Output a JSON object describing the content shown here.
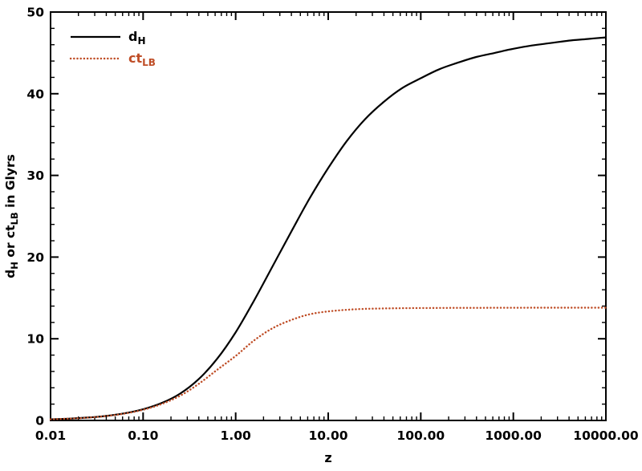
{
  "chart_data": {
    "type": "line",
    "title": "",
    "xlabel": "z",
    "ylabel": "dH or ctLB in Glyrs",
    "ylabel_parts": [
      {
        "t": "d"
      },
      {
        "t": "H",
        "sub": true
      },
      {
        "t": " or ct"
      },
      {
        "t": "LB",
        "sub": true
      },
      {
        "t": " in Glyrs"
      }
    ],
    "x_scale": "log",
    "xlim": [
      0.01,
      10000
    ],
    "ylim": [
      0,
      50
    ],
    "x_ticks": [
      {
        "v": 0.01,
        "label": "0.01"
      },
      {
        "v": 0.1,
        "label": "0.10"
      },
      {
        "v": 1,
        "label": "1.00"
      },
      {
        "v": 10,
        "label": "10.00"
      },
      {
        "v": 100,
        "label": "100.00"
      },
      {
        "v": 1000,
        "label": "1000.00"
      },
      {
        "v": 10000,
        "label": "10000.00"
      }
    ],
    "y_ticks": [
      {
        "v": 0,
        "label": "0"
      },
      {
        "v": 10,
        "label": "10"
      },
      {
        "v": 20,
        "label": "20"
      },
      {
        "v": 30,
        "label": "30"
      },
      {
        "v": 40,
        "label": "40"
      },
      {
        "v": 50,
        "label": "50"
      }
    ],
    "y_minor_step": 2,
    "grid": false,
    "legend_position": "top-left",
    "frame_color": "#000000",
    "series": [
      {
        "name": "d_H",
        "label_parts": [
          {
            "t": "d"
          },
          {
            "t": "H",
            "sub": true
          }
        ],
        "color": "#000000",
        "style": "solid",
        "x": [
          0.01,
          0.0158,
          0.0251,
          0.0398,
          0.0631,
          0.1,
          0.1585,
          0.2512,
          0.3981,
          0.631,
          1,
          1.585,
          2.512,
          3.981,
          6.31,
          10,
          15.85,
          25.12,
          39.81,
          63.1,
          100,
          158.5,
          251.2,
          398.1,
          631,
          1000,
          1585,
          2512,
          3981,
          6310,
          10000
        ],
        "y": [
          0.14,
          0.22,
          0.35,
          0.55,
          0.87,
          1.37,
          2.13,
          3.29,
          5.05,
          7.55,
          10.8,
          14.7,
          18.9,
          23.1,
          27.2,
          30.9,
          34.2,
          36.9,
          39.0,
          40.7,
          41.9,
          43.0,
          43.8,
          44.5,
          45.0,
          45.5,
          45.9,
          46.2,
          46.5,
          46.7,
          46.9
        ]
      },
      {
        "name": "ct_LB",
        "label_parts": [
          {
            "t": "ct"
          },
          {
            "t": "LB",
            "sub": true
          }
        ],
        "color": "#bf4d26",
        "style": "dotted",
        "x": [
          0.01,
          0.0158,
          0.0251,
          0.0398,
          0.0631,
          0.1,
          0.1585,
          0.2512,
          0.3981,
          0.631,
          1,
          1.585,
          2.512,
          3.981,
          6.31,
          10,
          15.85,
          25.12,
          39.81,
          63.1,
          100,
          158.5,
          251.2,
          398.1,
          631,
          1000,
          1585,
          2512,
          3981,
          6310,
          10000
        ],
        "y": [
          0.14,
          0.22,
          0.34,
          0.54,
          0.84,
          1.31,
          2.01,
          3.03,
          4.47,
          6.2,
          7.9,
          9.8,
          11.3,
          12.3,
          13.0,
          13.35,
          13.55,
          13.66,
          13.71,
          13.74,
          13.76,
          13.77,
          13.78,
          13.78,
          13.79,
          13.79,
          13.8,
          13.8,
          13.8,
          13.8,
          13.8
        ]
      }
    ]
  }
}
